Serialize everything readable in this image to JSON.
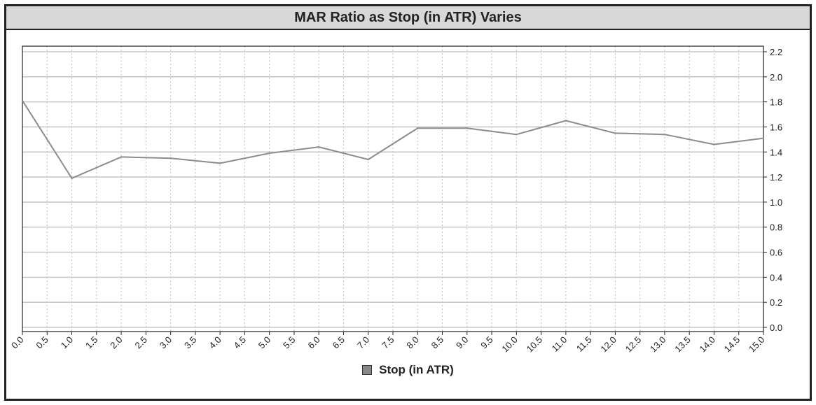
{
  "chart_data": {
    "type": "line",
    "title": "MAR Ratio as Stop (in ATR) Varies",
    "xlabel": "",
    "ylabel": "",
    "x": [
      0.0,
      1.0,
      2.0,
      3.0,
      4.0,
      5.0,
      6.0,
      7.0,
      8.0,
      9.0,
      10.0,
      11.0,
      12.0,
      13.0,
      14.0,
      15.0
    ],
    "series": [
      {
        "name": "Stop (in ATR)",
        "color": "#8c8c8c",
        "values": [
          1.81,
          1.19,
          1.36,
          1.35,
          1.31,
          1.39,
          1.44,
          1.34,
          1.59,
          1.59,
          1.54,
          1.65,
          1.55,
          1.54,
          1.46,
          1.51
        ]
      }
    ],
    "xlim": [
      0,
      15
    ],
    "ylim": [
      0,
      2.2
    ],
    "x_ticks": [
      "0.0",
      "0.5",
      "1.0",
      "1.5",
      "2.0",
      "2.5",
      "3.0",
      "3.5",
      "4.0",
      "4.5",
      "5.0",
      "5.5",
      "6.0",
      "6.5",
      "7.0",
      "7.5",
      "8.0",
      "8.5",
      "9.0",
      "9.5",
      "10.0",
      "10.5",
      "11.0",
      "11.5",
      "12.0",
      "12.5",
      "13.0",
      "13.5",
      "14.0",
      "14.5",
      "15.0"
    ],
    "y_ticks": [
      "0.0",
      "0.2",
      "0.4",
      "0.6",
      "0.8",
      "1.0",
      "1.2",
      "1.4",
      "1.6",
      "1.8",
      "2.0",
      "2.2"
    ],
    "y_axis_side": "right",
    "grid": true,
    "legend_position": "bottom-center"
  }
}
